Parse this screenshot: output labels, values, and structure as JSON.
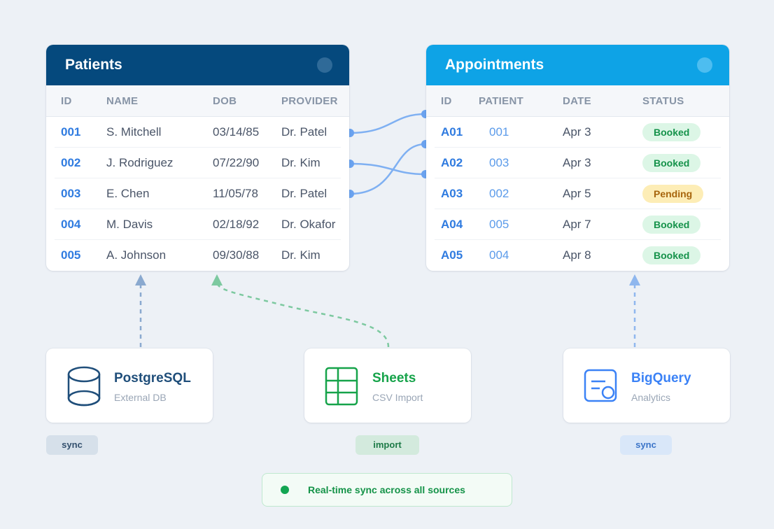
{
  "patients": {
    "title": "Patients",
    "headers": [
      "ID",
      "NAME",
      "DOB",
      "PROVIDER"
    ],
    "rows": [
      {
        "id": "001",
        "name": "S. Mitchell",
        "dob": "03/14/85",
        "provider": "Dr. Patel"
      },
      {
        "id": "002",
        "name": "J. Rodriguez",
        "dob": "07/22/90",
        "provider": "Dr. Kim"
      },
      {
        "id": "003",
        "name": "E. Chen",
        "dob": "11/05/78",
        "provider": "Dr. Patel"
      },
      {
        "id": "004",
        "name": "M. Davis",
        "dob": "02/18/92",
        "provider": "Dr. Okafor"
      },
      {
        "id": "005",
        "name": "A. Johnson",
        "dob": "09/30/88",
        "provider": "Dr. Kim"
      }
    ]
  },
  "appointments": {
    "title": "Appointments",
    "headers": [
      "ID",
      "PATIENT",
      "DATE",
      "STATUS"
    ],
    "rows": [
      {
        "id": "A01",
        "patient": "001",
        "date": "Apr 3",
        "status": "Booked"
      },
      {
        "id": "A02",
        "patient": "003",
        "date": "Apr 3",
        "status": "Booked"
      },
      {
        "id": "A03",
        "patient": "002",
        "date": "Apr 5",
        "status": "Pending"
      },
      {
        "id": "A04",
        "patient": "005",
        "date": "Apr 7",
        "status": "Booked"
      },
      {
        "id": "A05",
        "patient": "004",
        "date": "Apr 8",
        "status": "Booked"
      }
    ]
  },
  "sources": [
    {
      "title": "PostgreSQL",
      "subtitle": "External DB",
      "tag": "sync",
      "icon": "database-icon",
      "color": "#1f4e7a"
    },
    {
      "title": "Sheets",
      "subtitle": "CSV Import",
      "tag": "import",
      "icon": "spreadsheet-icon",
      "color": "#16a34a"
    },
    {
      "title": "BigQuery",
      "subtitle": "Analytics",
      "tag": "sync",
      "icon": "analytics-icon",
      "color": "#3b82f6"
    }
  ],
  "footer": {
    "text": "Real-time sync across all sources"
  },
  "colors": {
    "patients_header": "#05497d",
    "appointments_header": "#0ea3e6",
    "link_line": "#6aa8f0",
    "booked": "#15924a",
    "pending": "#a7650c"
  }
}
